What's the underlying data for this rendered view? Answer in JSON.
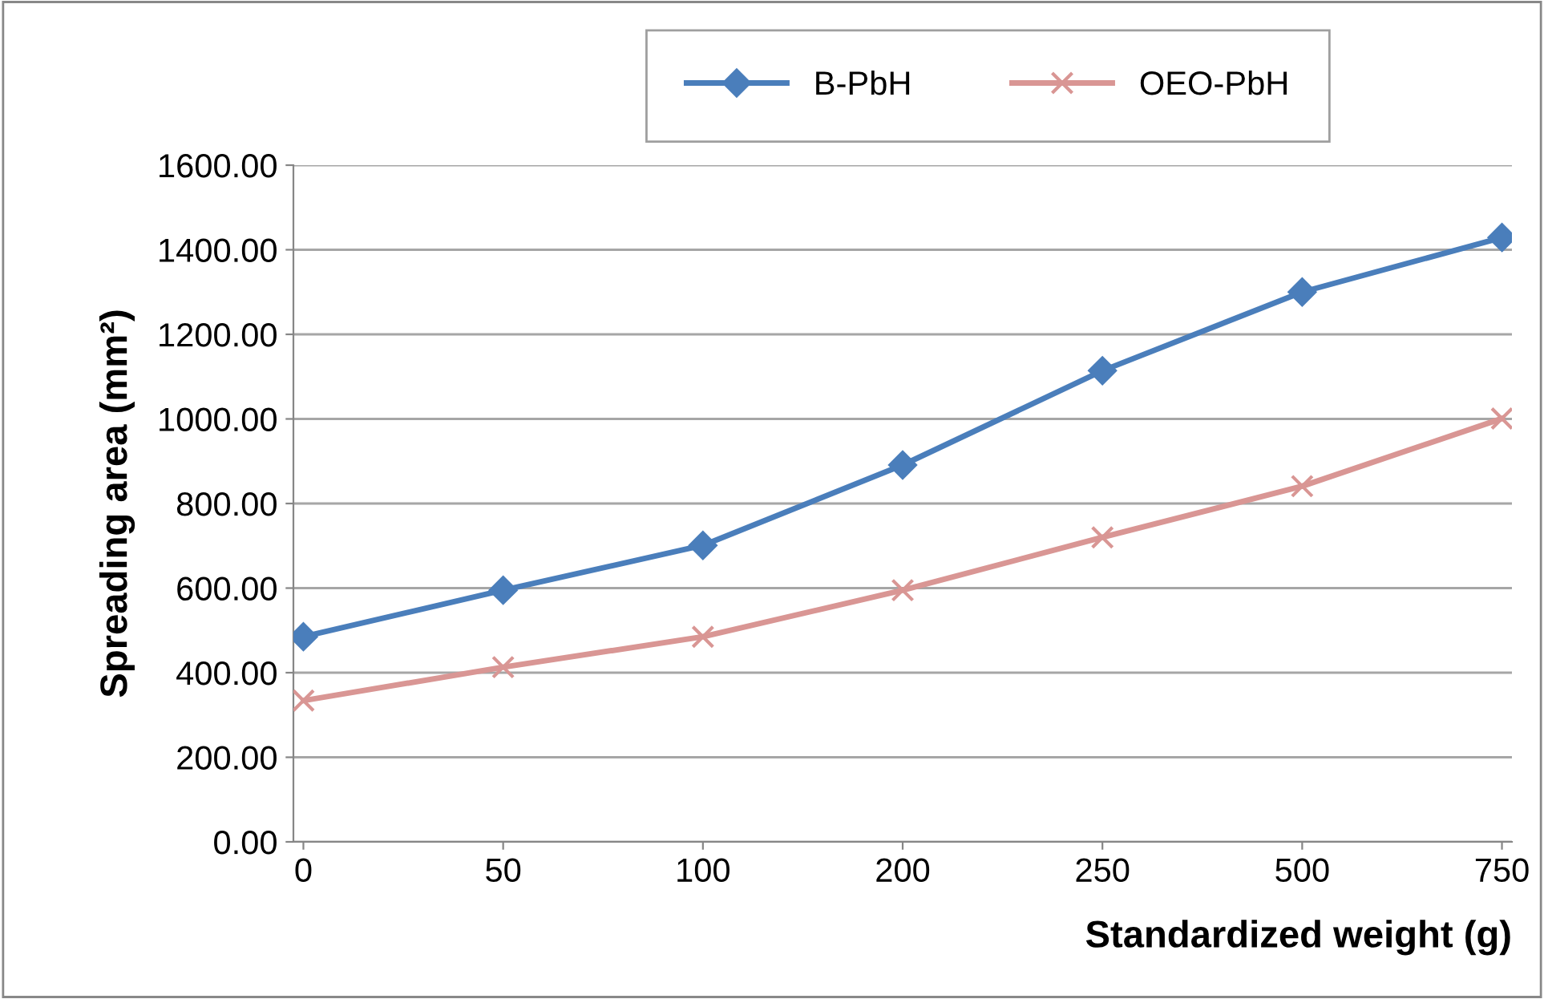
{
  "chart_data": {
    "type": "line",
    "xlabel": "Standardized weight (g)",
    "ylabel": "Spreading area (mm²)",
    "categories": [
      "0",
      "50",
      "100",
      "200",
      "250",
      "500",
      "750"
    ],
    "series": [
      {
        "name": "B-PbH",
        "color": "#4a7ebb",
        "marker": "diamond",
        "values": [
          485,
          595,
          701,
          891,
          1114,
          1300,
          1429
        ]
      },
      {
        "name": "OEO-PbH",
        "color": "#d99694",
        "marker": "cross",
        "values": [
          334,
          413,
          485,
          595,
          720,
          841,
          1001
        ]
      }
    ],
    "ylim": [
      0,
      1600
    ],
    "yticks": [
      {
        "value": 0,
        "label": "0.00"
      },
      {
        "value": 200,
        "label": "200.00"
      },
      {
        "value": 400,
        "label": "400.00"
      },
      {
        "value": 600,
        "label": "600.00"
      },
      {
        "value": 800,
        "label": "800.00"
      },
      {
        "value": 1000,
        "label": "1000.00"
      },
      {
        "value": 1200,
        "label": "1200.00"
      },
      {
        "value": 1400,
        "label": "1400.00"
      },
      {
        "value": 1600,
        "label": "1600.00"
      }
    ],
    "grid": "y",
    "legend": "top",
    "line_style": "solid"
  }
}
